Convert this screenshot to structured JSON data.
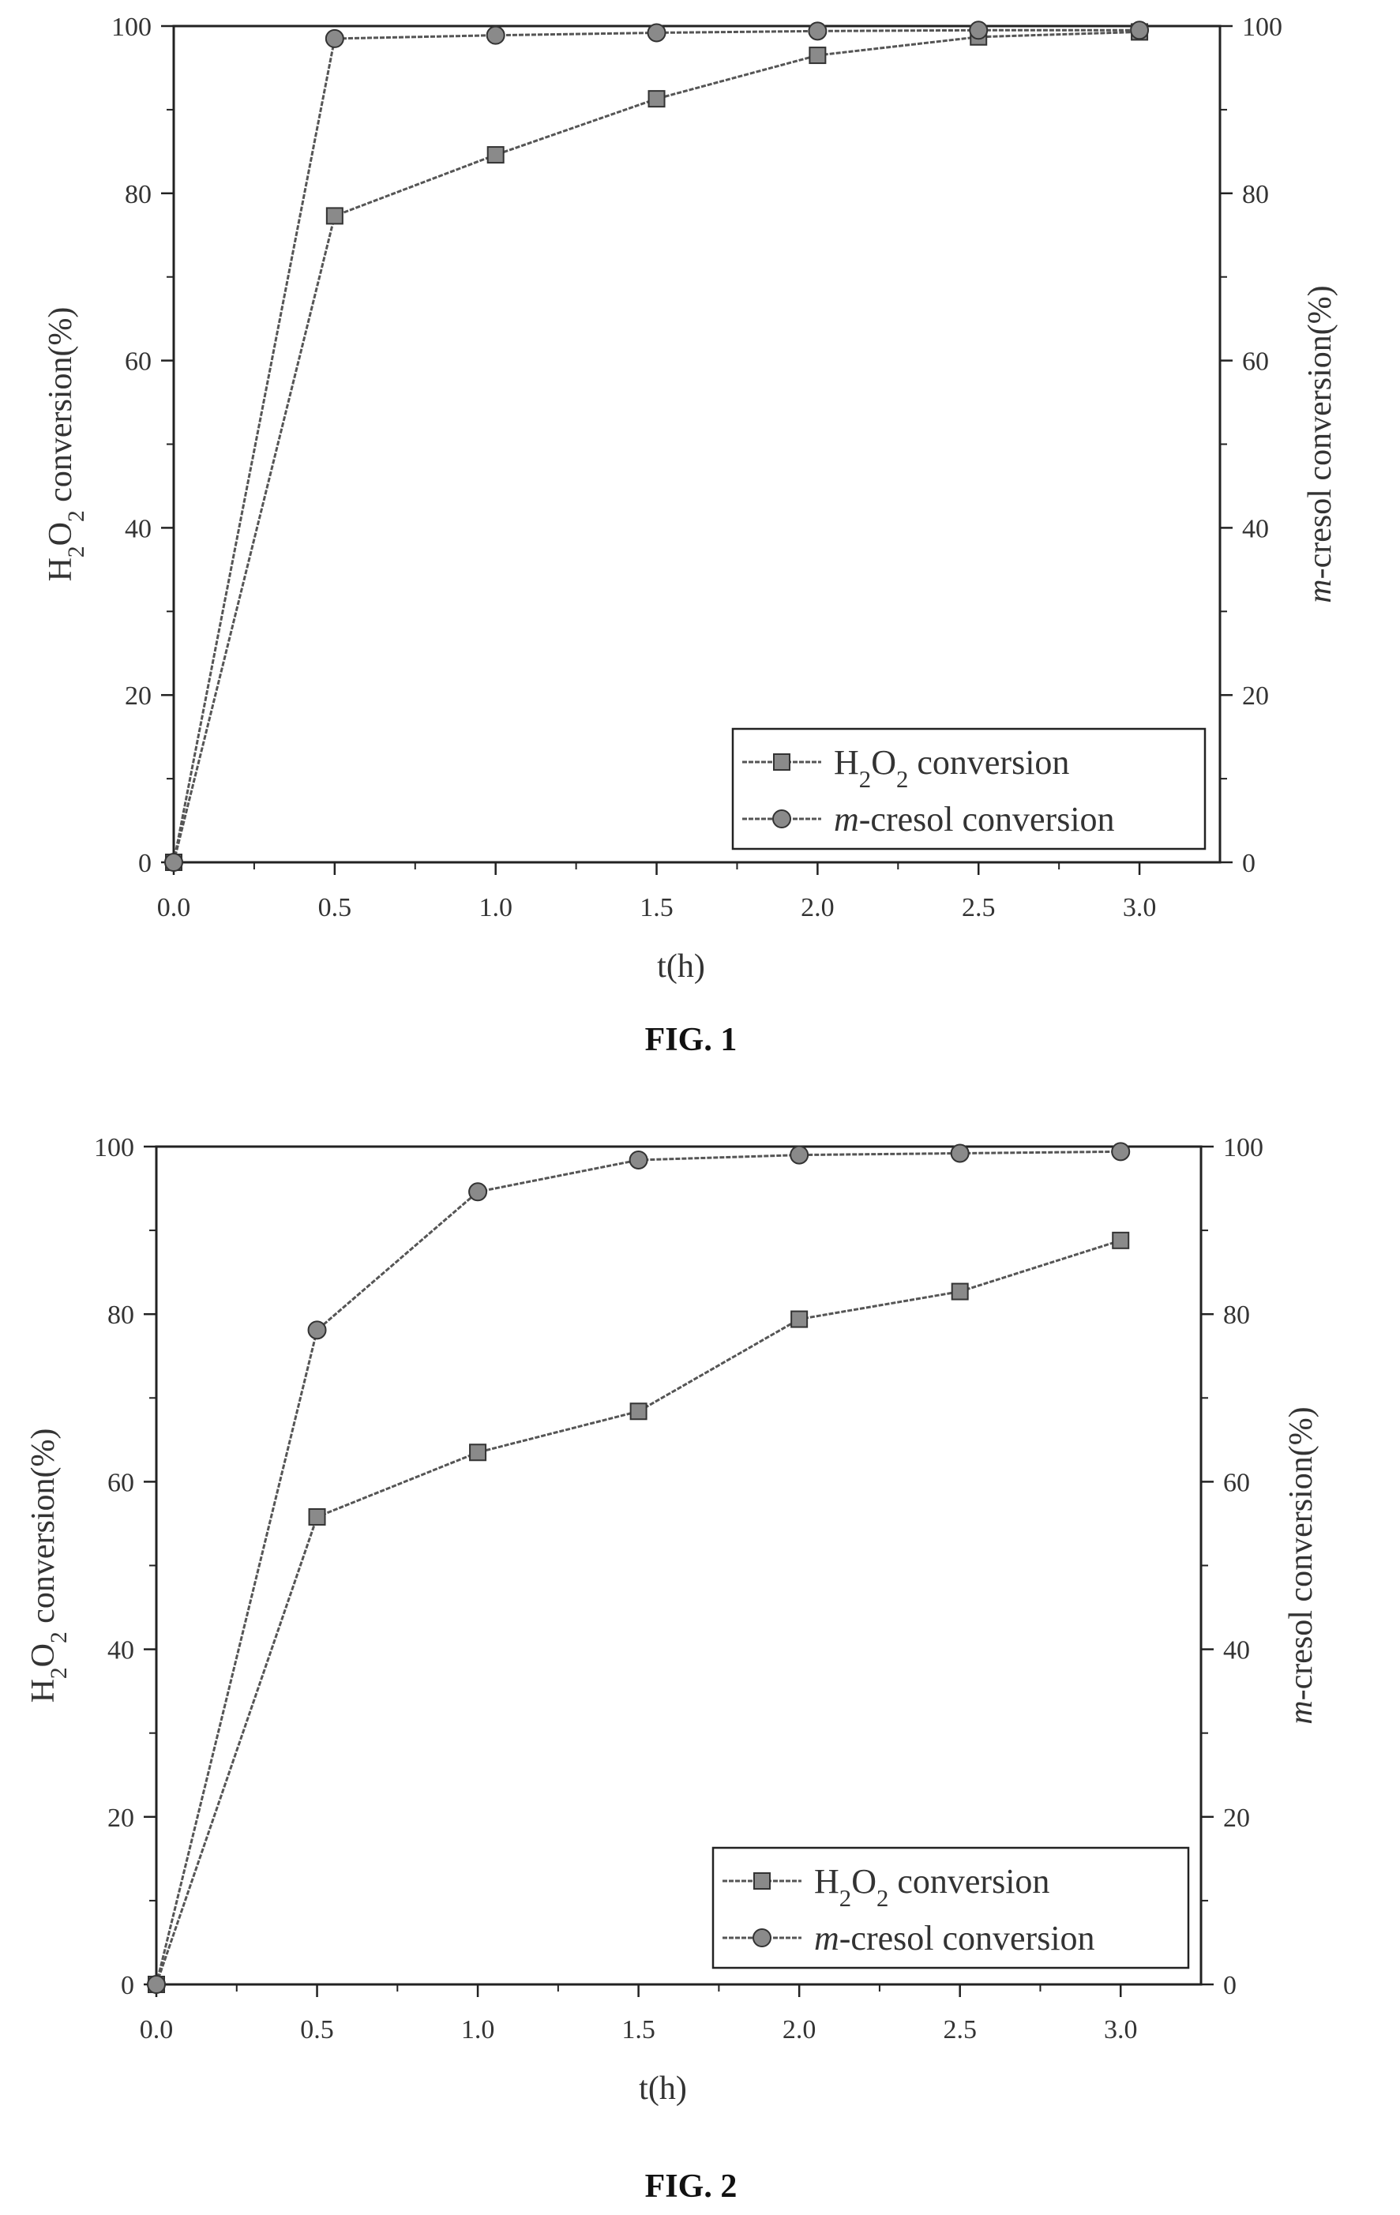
{
  "colors": {
    "line": "#555555",
    "marker_fill": "#8a8a8a",
    "axis": "#222222",
    "background": "#ffffff"
  },
  "chart_data": [
    {
      "type": "line",
      "caption": "FIG. 1",
      "xlabel": "t(h)",
      "ylabel_left": {
        "main": "H",
        "sub1": "2",
        "mid": "O",
        "sub2": "2",
        "rest": " conversion(%)"
      },
      "ylabel_right": {
        "italic": "m",
        "rest": "-cresol conversion(%)"
      },
      "xlim": [
        0,
        3.25
      ],
      "ylim": [
        0,
        100
      ],
      "x_ticks": [
        0.0,
        0.5,
        1.0,
        1.5,
        2.0,
        2.5,
        3.0
      ],
      "x_tick_labels": [
        "0.0",
        "0.5",
        "1.0",
        "1.5",
        "2.0",
        "2.5",
        "3.0"
      ],
      "y_ticks": [
        0,
        20,
        40,
        60,
        80,
        100
      ],
      "y_tick_labels": [
        "0",
        "20",
        "40",
        "60",
        "80",
        "100"
      ],
      "x": [
        0,
        0.5,
        1.0,
        1.5,
        2.0,
        2.5,
        3.0
      ],
      "series": [
        {
          "marker": "square",
          "legend": {
            "main": "H",
            "sub1": "2",
            "mid": "O",
            "sub2": "2",
            "rest": " conversion"
          },
          "values": [
            0,
            77.3,
            84.6,
            91.3,
            96.5,
            98.7,
            99.3
          ]
        },
        {
          "marker": "circle",
          "legend": {
            "italic": "m",
            "rest": "-cresol conversion"
          },
          "values": [
            0,
            98.5,
            98.9,
            99.2,
            99.4,
            99.5,
            99.5
          ]
        }
      ],
      "legend_position": "bottom-right"
    },
    {
      "type": "line",
      "caption": "FIG. 2",
      "xlabel": "t(h)",
      "ylabel_left": {
        "main": "H",
        "sub1": "2",
        "mid": "O",
        "sub2": "2",
        "rest": " conversion(%)"
      },
      "ylabel_right": {
        "italic": "m",
        "rest": "-cresol conversion(%)"
      },
      "xlim": [
        0,
        3.25
      ],
      "ylim": [
        0,
        100
      ],
      "x_ticks": [
        0.0,
        0.5,
        1.0,
        1.5,
        2.0,
        2.5,
        3.0
      ],
      "x_tick_labels": [
        "0.0",
        "0.5",
        "1.0",
        "1.5",
        "2.0",
        "2.5",
        "3.0"
      ],
      "y_ticks": [
        0,
        20,
        40,
        60,
        80,
        100
      ],
      "y_tick_labels": [
        "0",
        "20",
        "40",
        "60",
        "80",
        "100"
      ],
      "x": [
        0,
        0.5,
        1.0,
        1.5,
        2.0,
        2.5,
        3.0
      ],
      "series": [
        {
          "marker": "square",
          "legend": {
            "main": "H",
            "sub1": "2",
            "mid": "O",
            "sub2": "2",
            "rest": " conversion"
          },
          "values": [
            0,
            55.8,
            63.5,
            68.4,
            79.4,
            82.7,
            88.8
          ]
        },
        {
          "marker": "circle",
          "legend": {
            "italic": "m",
            "rest": "-cresol conversion"
          },
          "values": [
            0,
            78.1,
            94.6,
            98.4,
            99.0,
            99.2,
            99.4
          ]
        }
      ],
      "legend_position": "bottom-right"
    }
  ]
}
